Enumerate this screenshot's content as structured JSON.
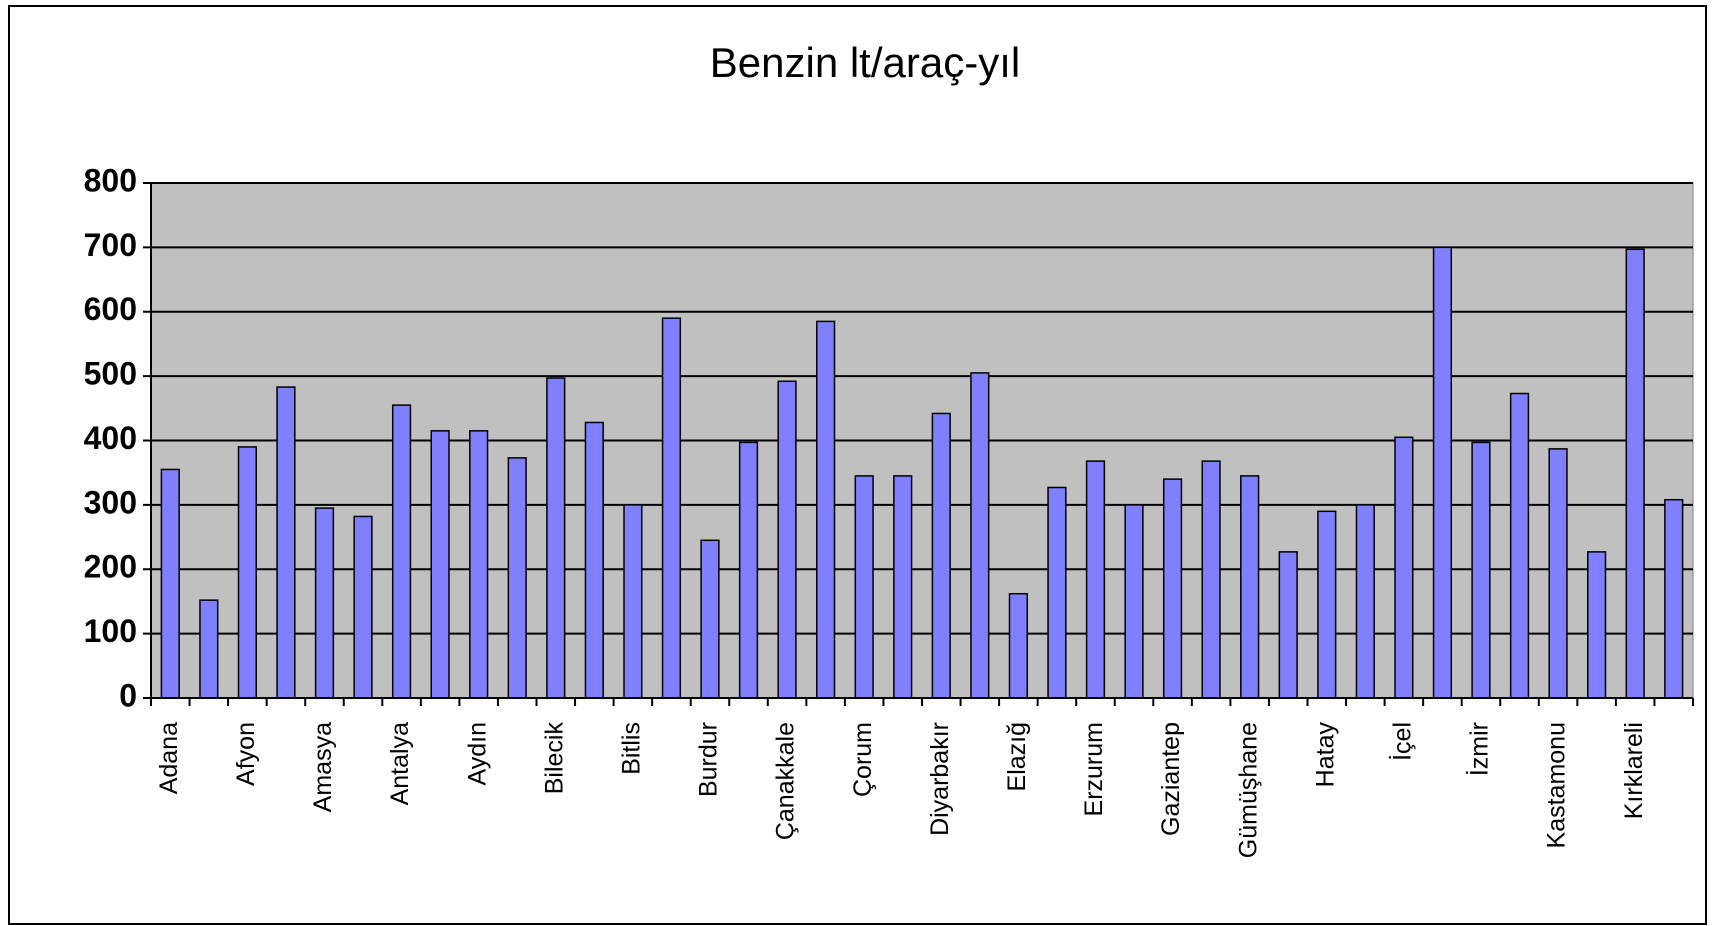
{
  "chart_data": {
    "type": "bar",
    "title": "Benzin lt/araç-yıl",
    "categories": [
      "Adana",
      null,
      "Afyon",
      null,
      "Amasya",
      null,
      "Antalya",
      null,
      "Aydın",
      null,
      "Bilecik",
      null,
      "Bitlis",
      null,
      "Burdur",
      null,
      "Çanakkale",
      null,
      "Çorum",
      null,
      "Diyarbakır",
      null,
      "Elazığ",
      null,
      "Erzurum",
      null,
      "Gaziantep",
      null,
      "Gümüşhane",
      null,
      "Hatay",
      null,
      "İçel",
      null,
      "İzmir",
      null,
      "Kastamonu",
      null,
      "Kırklareli",
      null
    ],
    "values": [
      355,
      152,
      390,
      483,
      295,
      282,
      455,
      415,
      415,
      373,
      497,
      428,
      300,
      590,
      245,
      397,
      492,
      585,
      345,
      345,
      442,
      505,
      162,
      327,
      368,
      300,
      340,
      368,
      345,
      227,
      290,
      300,
      405,
      700,
      397,
      473,
      387,
      227,
      697,
      308
    ],
    "color": "#8080ff",
    "plot_background": "#c0c0c0",
    "ylim": [
      0,
      800
    ],
    "yticks": [
      0,
      100,
      200,
      300,
      400,
      500,
      600,
      700,
      800
    ],
    "grid": true
  }
}
